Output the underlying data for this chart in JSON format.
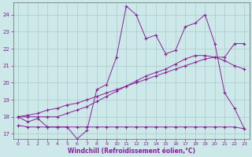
{
  "bg_color": "#cce8e8",
  "grid_color": "#aacccc",
  "line_color": "#882299",
  "xlabel": "Windchill (Refroidissement éolien,°C)",
  "xlim": [
    -0.5,
    23.5
  ],
  "ylim": [
    16.7,
    24.7
  ],
  "yticks": [
    17,
    18,
    19,
    20,
    21,
    22,
    23,
    24
  ],
  "xticks": [
    0,
    1,
    2,
    3,
    4,
    5,
    6,
    7,
    8,
    9,
    10,
    11,
    12,
    13,
    14,
    15,
    16,
    17,
    18,
    19,
    20,
    21,
    22,
    23
  ],
  "series1_x": [
    0,
    1,
    2,
    3,
    4,
    5,
    6,
    7,
    8,
    9,
    10,
    11,
    12,
    13,
    14,
    15,
    16,
    17,
    18,
    19,
    20,
    21,
    22,
    23
  ],
  "series1_y": [
    17.5,
    17.4,
    17.4,
    17.4,
    17.4,
    17.4,
    17.4,
    17.4,
    17.4,
    17.4,
    17.4,
    17.4,
    17.4,
    17.4,
    17.4,
    17.4,
    17.4,
    17.4,
    17.4,
    17.4,
    17.4,
    17.4,
    17.4,
    17.3
  ],
  "series2_x": [
    0,
    1,
    2,
    3,
    4,
    5,
    6,
    7,
    8,
    9,
    10,
    11,
    12,
    13,
    14,
    15,
    16,
    17,
    18,
    19,
    20,
    21,
    22,
    23
  ],
  "series2_y": [
    18.0,
    18.1,
    18.2,
    18.4,
    18.5,
    18.7,
    18.8,
    19.0,
    19.2,
    19.4,
    19.6,
    19.8,
    20.0,
    20.2,
    20.4,
    20.6,
    20.8,
    21.0,
    21.2,
    21.4,
    21.5,
    21.3,
    21.0,
    20.8
  ],
  "series3_x": [
    0,
    1,
    2,
    3,
    4,
    5,
    6,
    7,
    8,
    9,
    10,
    11,
    12,
    13,
    14,
    15,
    16,
    17,
    18,
    19,
    20,
    21,
    22,
    23
  ],
  "series3_y": [
    18.0,
    17.7,
    17.9,
    17.4,
    17.4,
    17.4,
    16.7,
    17.2,
    19.6,
    19.9,
    21.5,
    24.5,
    24.0,
    22.6,
    22.8,
    21.7,
    21.9,
    23.3,
    23.5,
    24.0,
    22.3,
    19.4,
    18.5,
    17.3
  ],
  "series4_x": [
    0,
    1,
    2,
    3,
    4,
    5,
    6,
    7,
    8,
    9,
    10,
    11,
    12,
    13,
    14,
    15,
    16,
    17,
    18,
    19,
    20,
    21,
    22,
    23
  ],
  "series4_y": [
    18.0,
    18.0,
    18.0,
    18.0,
    18.0,
    18.2,
    18.4,
    18.6,
    18.9,
    19.2,
    19.5,
    19.8,
    20.1,
    20.4,
    20.6,
    20.8,
    21.1,
    21.4,
    21.6,
    21.6,
    21.5,
    21.5,
    22.3,
    22.3
  ]
}
